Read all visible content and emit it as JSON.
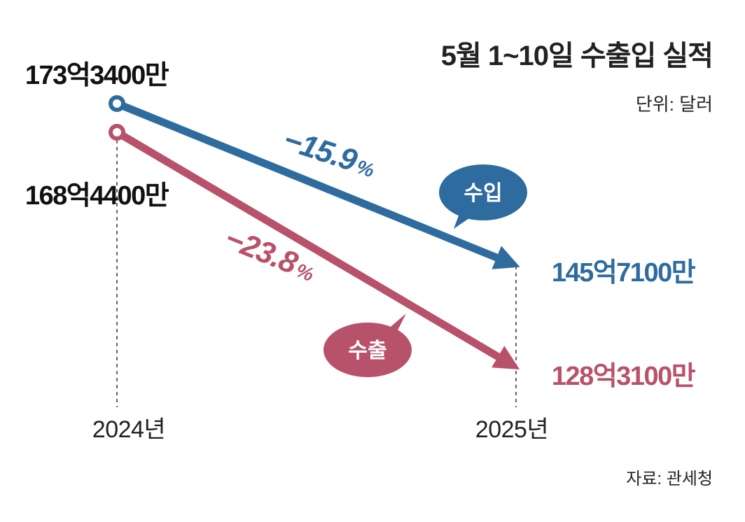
{
  "chart_data": {
    "type": "line",
    "title": "5월 1~10일 수출입 실적",
    "unit_label": "단위: 달러",
    "source": "자료: 관세청",
    "categories": [
      "2024년",
      "2025년"
    ],
    "series": [
      {
        "name": "수입",
        "values": [
          17334000000,
          14571000000
        ],
        "value_labels": [
          "173억3400만",
          "145억7100만"
        ],
        "change": "−15.9",
        "change_unit": "%",
        "color": "#2e6b9e"
      },
      {
        "name": "수출",
        "values": [
          16844000000,
          12831000000
        ],
        "value_labels": [
          "168억4400만",
          "128억3100만"
        ],
        "change": "−23.8",
        "change_unit": "%",
        "color": "#b8526a"
      }
    ]
  }
}
